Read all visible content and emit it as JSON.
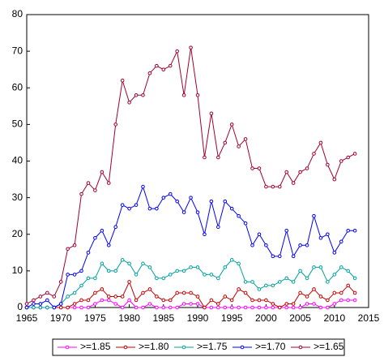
{
  "chart_data": {
    "type": "line",
    "x": [
      1965,
      1966,
      1967,
      1968,
      1969,
      1970,
      1971,
      1972,
      1973,
      1974,
      1975,
      1976,
      1977,
      1978,
      1979,
      1980,
      1981,
      1982,
      1983,
      1984,
      1985,
      1986,
      1987,
      1988,
      1989,
      1990,
      1991,
      1992,
      1993,
      1994,
      1995,
      1996,
      1997,
      1998,
      1999,
      2000,
      2001,
      2002,
      2003,
      2004,
      2005,
      2006,
      2007,
      2008,
      2009,
      2010,
      2011,
      2012,
      2013
    ],
    "series": [
      {
        "name": ">=1.85",
        "color": "#ff00ff",
        "values": [
          0,
          0,
          0,
          0,
          0,
          0,
          0,
          0,
          0,
          0,
          1,
          2,
          2,
          1,
          0,
          2,
          0,
          0,
          1,
          0,
          0,
          0,
          0,
          1,
          1,
          1,
          0,
          0,
          0,
          0,
          0,
          0,
          0,
          0,
          0,
          0,
          0,
          0,
          0,
          0,
          0,
          1,
          1,
          0,
          0,
          1,
          2,
          2,
          2
        ]
      },
      {
        "name": ">=1.80",
        "color": "#c00000",
        "values": [
          0,
          0,
          0,
          0,
          0,
          0,
          0,
          1,
          2,
          2,
          4,
          5,
          3,
          3,
          3,
          7,
          2,
          4,
          5,
          3,
          2,
          2,
          4,
          4,
          4,
          3,
          0,
          2,
          1,
          3,
          2,
          5,
          4,
          2,
          2,
          2,
          1,
          0,
          1,
          1,
          4,
          3,
          5,
          3,
          2,
          4,
          4,
          6,
          4
        ]
      },
      {
        "name": ">=1.75",
        "color": "#00a0a0",
        "values": [
          0,
          0,
          0,
          0,
          0,
          1,
          3,
          4,
          6,
          8,
          8,
          12,
          10,
          10,
          13,
          12,
          9,
          12,
          11,
          8,
          8,
          9,
          10,
          10,
          11,
          11,
          9,
          9,
          8,
          11,
          13,
          12,
          7,
          7,
          5,
          6,
          6,
          7,
          8,
          7,
          10,
          8,
          11,
          11,
          7,
          9,
          11,
          10,
          8
        ]
      },
      {
        "name": ">=1.70",
        "color": "#0000ff",
        "values": [
          0,
          1,
          1,
          2,
          0,
          1,
          9,
          9,
          10,
          15,
          19,
          21,
          17,
          22,
          28,
          27,
          28,
          33,
          27,
          27,
          30,
          31,
          29,
          26,
          30,
          26,
          20,
          29,
          22,
          29,
          27,
          25,
          23,
          17,
          20,
          17,
          14,
          14,
          21,
          14,
          17,
          17,
          25,
          19,
          20,
          15,
          18,
          21,
          21
        ]
      },
      {
        "name": ">=1.65",
        "color": "#a00030",
        "values": [
          1,
          2,
          3,
          4,
          3,
          7,
          16,
          17,
          31,
          34,
          32,
          37,
          34,
          50,
          62,
          56,
          58,
          58,
          64,
          66,
          65,
          66,
          70,
          58,
          71,
          58,
          41,
          53,
          41,
          45,
          50,
          44,
          46,
          38,
          38,
          33,
          33,
          33,
          37,
          34,
          37,
          38,
          42,
          45,
          39,
          35,
          40,
          41,
          42
        ]
      }
    ],
    "xlim": [
      1965,
      2015
    ],
    "xticks": [
      1965,
      1970,
      1975,
      1980,
      1985,
      1990,
      1995,
      2000,
      2005,
      2010,
      2015
    ],
    "ylim": [
      0,
      80
    ],
    "yticks": [
      0,
      10,
      20,
      30,
      40,
      50,
      60,
      70,
      80
    ],
    "legend": "bottom"
  }
}
